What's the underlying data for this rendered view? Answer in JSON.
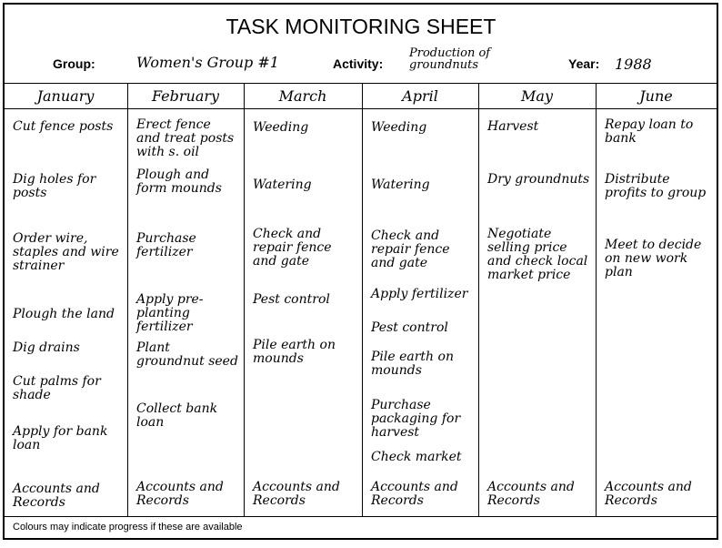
{
  "title": "TASK MONITORING SHEET",
  "fields": {
    "group_label": "Group:",
    "group_value": "Women's Group #1",
    "activity_label": "Activity:",
    "activity_value": "Production of groundnuts",
    "year_label": "Year:",
    "year_value": "1988"
  },
  "months": [
    {
      "name": "January",
      "tasks": [
        "Cut fence posts",
        "Dig holes for posts",
        "Order wire, staples and wire strainer",
        "Plough the land",
        "Dig drains",
        "Cut palms for shade",
        "Apply for bank loan",
        "Accounts and Records"
      ]
    },
    {
      "name": "February",
      "tasks": [
        "Erect fence and treat posts with s. oil",
        "Plough and form mounds",
        "Purchase fertilizer",
        "Apply pre-planting fertilizer",
        "Plant groundnut seed",
        "Collect bank loan",
        "Accounts and Records"
      ]
    },
    {
      "name": "March",
      "tasks": [
        "Weeding",
        "Watering",
        "Check and repair fence and gate",
        "Pest control",
        "Pile earth on mounds",
        "Accounts and Records"
      ]
    },
    {
      "name": "April",
      "tasks": [
        "Weeding",
        "Watering",
        "Check and repair fence and gate",
        "Apply fertilizer",
        "Pest control",
        "Pile earth on mounds",
        "Purchase packaging for harvest",
        "Check market",
        "Accounts and Records"
      ]
    },
    {
      "name": "May",
      "tasks": [
        "Harvest",
        "Dry groundnuts",
        "Negotiate selling price and check local market price",
        "Accounts and Records"
      ]
    },
    {
      "name": "June",
      "tasks": [
        "Repay loan to bank",
        "Distribute profits to group",
        "Meet to decide on new work plan",
        "Accounts and Records"
      ]
    }
  ],
  "footer": "Colours may indicate progress if these are available"
}
